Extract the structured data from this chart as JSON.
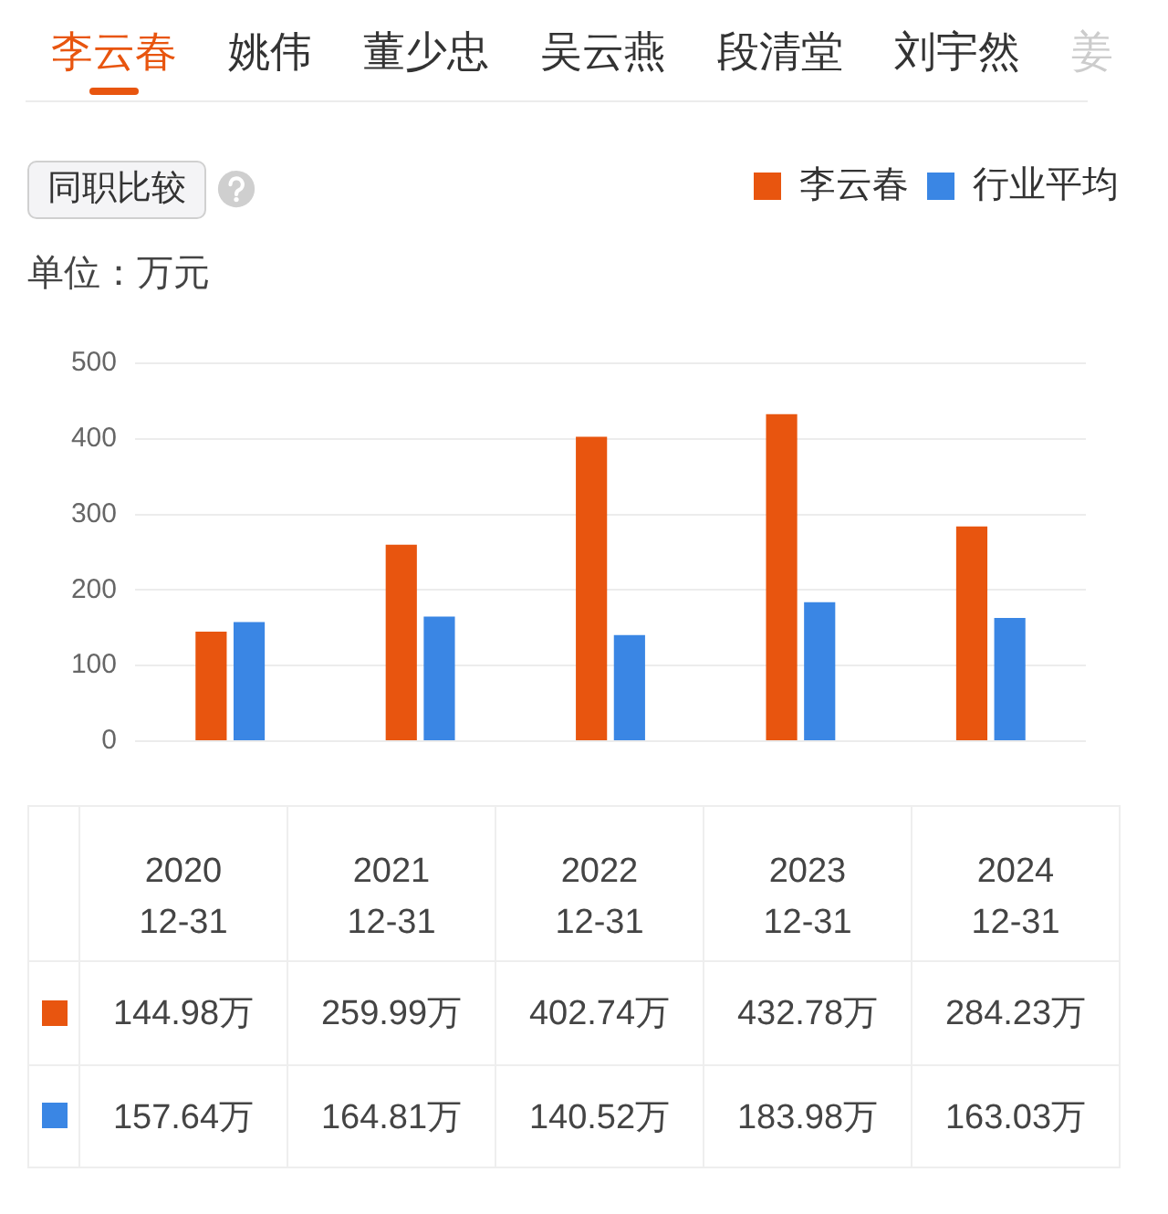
{
  "chart_data": {
    "type": "bar",
    "ylabel": "单位：万元",
    "annotations": [
      "李云春",
      "姚伟",
      "董少忠",
      "吴云燕",
      "段清堂",
      "刘宇然",
      "姜",
      "同职比较"
    ],
    "categories": [
      "2020\n12-31",
      "2021\n12-31",
      "2022\n12-31",
      "2023\n12-31",
      "2024\n12-31"
    ],
    "series": [
      {
        "name": "李云春",
        "color": "#e8550f",
        "values": [
          144.98,
          259.99,
          402.74,
          432.78,
          284.23
        ],
        "value_labels": [
          "144.98万",
          "259.99万",
          "402.74万",
          "432.78万",
          "284.23万"
        ]
      },
      {
        "name": "行业平均",
        "color": "#3a86e4",
        "values": [
          157.64,
          164.81,
          140.52,
          183.98,
          163.03
        ],
        "value_labels": [
          "157.64万",
          "164.81万",
          "140.52万",
          "183.98万",
          "163.03万"
        ]
      }
    ],
    "ylim": [
      0,
      500
    ],
    "yticks": [
      0,
      100,
      200,
      300,
      400,
      500
    ],
    "grid": "y",
    "legend": "top right",
    "tick_labels": "y"
  }
}
